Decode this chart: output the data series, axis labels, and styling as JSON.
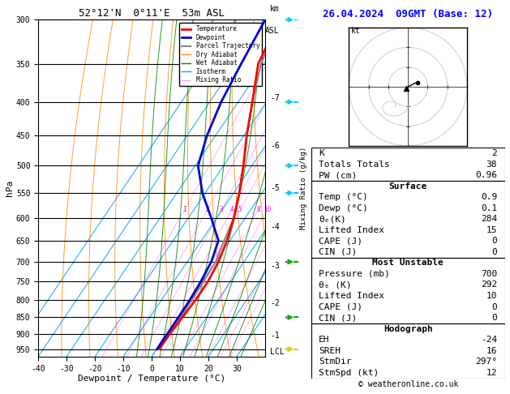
{
  "title_skewt": "52°12'N  0°11'E  53m ASL",
  "title_right": "26.04.2024  09GMT (Base: 12)",
  "xlabel": "Dewpoint / Temperature (°C)",
  "ylabel_left": "hPa",
  "pressure_levels": [
    300,
    350,
    400,
    450,
    500,
    550,
    600,
    650,
    700,
    750,
    800,
    850,
    900,
    950
  ],
  "pressure_min": 300,
  "pressure_max": 975,
  "temp_min": -40,
  "temp_max": 40,
  "skew_factor": 45,
  "temp_profile_T": [
    -35,
    -32,
    -25,
    -19,
    -13,
    -8,
    -4,
    -1,
    1,
    2,
    2,
    1.5,
    1.0,
    0.9
  ],
  "temp_profile_P": [
    300,
    350,
    400,
    450,
    500,
    550,
    600,
    650,
    700,
    750,
    800,
    850,
    900,
    950
  ],
  "dewp_profile_T": [
    -40,
    -38,
    -36,
    -33,
    -29,
    -21,
    -12,
    -4,
    -1.5,
    -0.5,
    0,
    0.1,
    0.1,
    0.1
  ],
  "dewp_profile_P": [
    300,
    350,
    400,
    450,
    500,
    550,
    600,
    650,
    700,
    750,
    800,
    850,
    900,
    950
  ],
  "parcel_profile_T": [
    -35,
    -31,
    -25,
    -19,
    -13,
    -8,
    -4,
    -2,
    0,
    0.5,
    0.7,
    0.8,
    0.9,
    0.9
  ],
  "parcel_profile_P": [
    300,
    350,
    400,
    450,
    500,
    550,
    600,
    650,
    700,
    750,
    800,
    850,
    900,
    950
  ],
  "isotherms": [
    -50,
    -40,
    -30,
    -20,
    -10,
    0,
    10,
    20,
    30,
    40,
    50
  ],
  "dry_adiabats_theta": [
    -30,
    -20,
    -10,
    0,
    10,
    20,
    30,
    40,
    50,
    60,
    70,
    80,
    90,
    100,
    110,
    120
  ],
  "wet_adiabats": [
    -4,
    0,
    4,
    8,
    12,
    16,
    20,
    24,
    28,
    32
  ],
  "mixing_ratios": [
    1,
    2,
    3,
    4,
    5,
    8,
    10,
    15,
    20,
    25
  ],
  "mixing_ratio_label_p": 583,
  "color_temp": "#ff0000",
  "color_dewp": "#0000cc",
  "color_parcel": "#888888",
  "color_dry_adiabat": "#ff8800",
  "color_wet_adiabat": "#008800",
  "color_isotherm": "#00aaff",
  "color_mixing": "#ff00ff",
  "wind_pressures": [
    300,
    400,
    500,
    550,
    700,
    850,
    950
  ],
  "wind_colors": [
    "#00ccff",
    "#00ccff",
    "#00ccff",
    "#00ccff",
    "#00aa00",
    "#00aa00",
    "#cccc00"
  ],
  "km_ticks": [
    7,
    6,
    5,
    4,
    3,
    2,
    1
  ],
  "km_pressures": [
    395,
    467,
    540,
    620,
    710,
    810,
    905
  ],
  "lcl_pressure": 960,
  "k_index": 2,
  "totals_totals": 38,
  "pw_cm": 0.96,
  "surface_temp": 0.9,
  "surface_dewp": 0.1,
  "theta_e_surface": 284,
  "lifted_index_surface": 15,
  "cape_surface": 0,
  "cin_surface": 0,
  "mu_pressure": 700,
  "mu_theta_e": 292,
  "mu_lifted_index": 10,
  "mu_cape": 0,
  "mu_cin": 0,
  "EH": -24,
  "SREH": 16,
  "StmDir": "297°",
  "StmSpd_kt": 12
}
